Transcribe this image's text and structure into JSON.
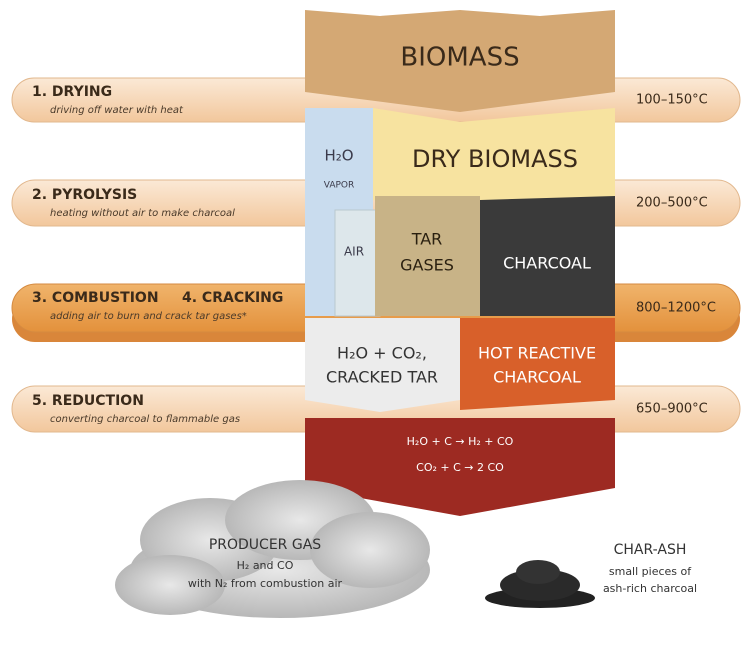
{
  "stages": [
    {
      "title": "1. DRYING",
      "description": "driving off water with heat",
      "temperature": "100–150°C"
    },
    {
      "title": "2. PYROLYSIS",
      "description": "heating without air to make charcoal",
      "temperature": "200–500°C"
    },
    {
      "title": "3. COMBUSTION",
      "title2": "4. CRACKING",
      "description": "adding air to burn and crack tar gases*",
      "temperature": "800–1200°C"
    },
    {
      "title": "5. REDUCTION",
      "description": "converting charcoal to flammable gas",
      "temperature": "650–900°C"
    }
  ],
  "blocks": {
    "biomass": "BIOMASS",
    "dry_biomass": "DRY BIOMASS",
    "vapor": [
      "H₂O",
      "VAPOR"
    ],
    "air": "AIR",
    "tar_gases": [
      "TAR",
      "GASES"
    ],
    "charcoal": "CHARCOAL",
    "cracked": [
      "H₂O + CO₂,",
      "CRACKED TAR"
    ],
    "hot_charcoal": [
      "HOT REACTIVE",
      "CHARCOAL"
    ],
    "reactions": [
      "H₂O + C → H₂ + CO",
      "CO₂ + C → 2 CO"
    ]
  },
  "outputs": {
    "producer_gas": {
      "title": "PRODUCER GAS",
      "lines": [
        "H₂ and CO",
        "with N₂ from combustion air"
      ]
    },
    "char_ash": {
      "title": "CHAR-ASH",
      "lines": [
        "small pieces of",
        "ash-rich charcoal"
      ]
    }
  }
}
